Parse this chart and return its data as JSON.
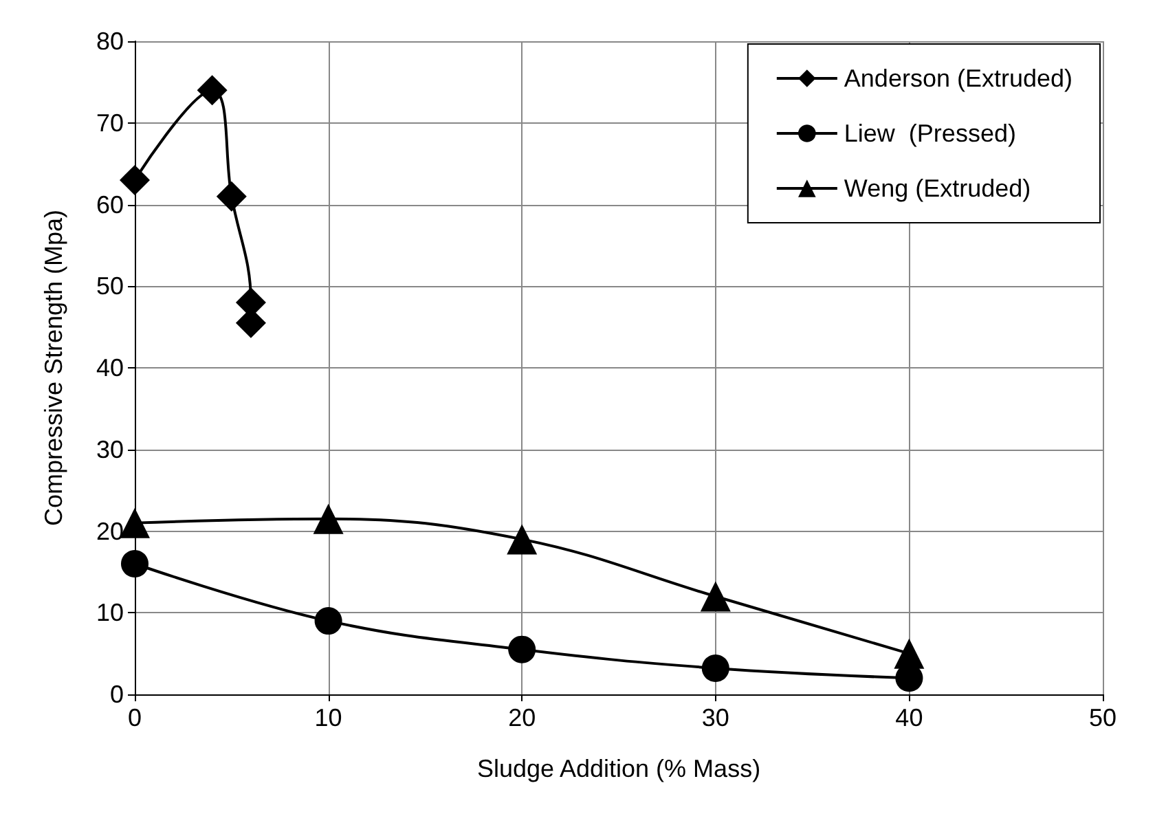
{
  "chart_data": {
    "type": "line",
    "xlabel": "Sludge Addition (% Mass)",
    "ylabel": "Compressive Strength (Mpa)",
    "xlim": [
      0,
      50
    ],
    "xticks": [
      0,
      10,
      20,
      30,
      40,
      50
    ],
    "ylim": [
      0,
      80
    ],
    "yticks": [
      0,
      10,
      20,
      30,
      40,
      50,
      60,
      70,
      80
    ],
    "grid": true,
    "legend": "top right",
    "line_style": "solid",
    "series": [
      {
        "name": "Anderson (Extruded)",
        "color": "#000000",
        "marker": "diamond",
        "x": [
          0,
          4,
          5,
          6,
          6
        ],
        "values": [
          63,
          74,
          61,
          48,
          45.5
        ]
      },
      {
        "name": "Liew  (Pressed)",
        "color": "#000000",
        "marker": "circle",
        "x": [
          0,
          10,
          20,
          30,
          40
        ],
        "values": [
          16,
          9,
          5.5,
          3.2,
          2
        ]
      },
      {
        "name": "Weng (Extruded)",
        "color": "#000000",
        "marker": "triangle",
        "x": [
          0,
          10,
          20,
          30,
          40
        ],
        "values": [
          21,
          21.5,
          19,
          12,
          5
        ]
      }
    ]
  }
}
